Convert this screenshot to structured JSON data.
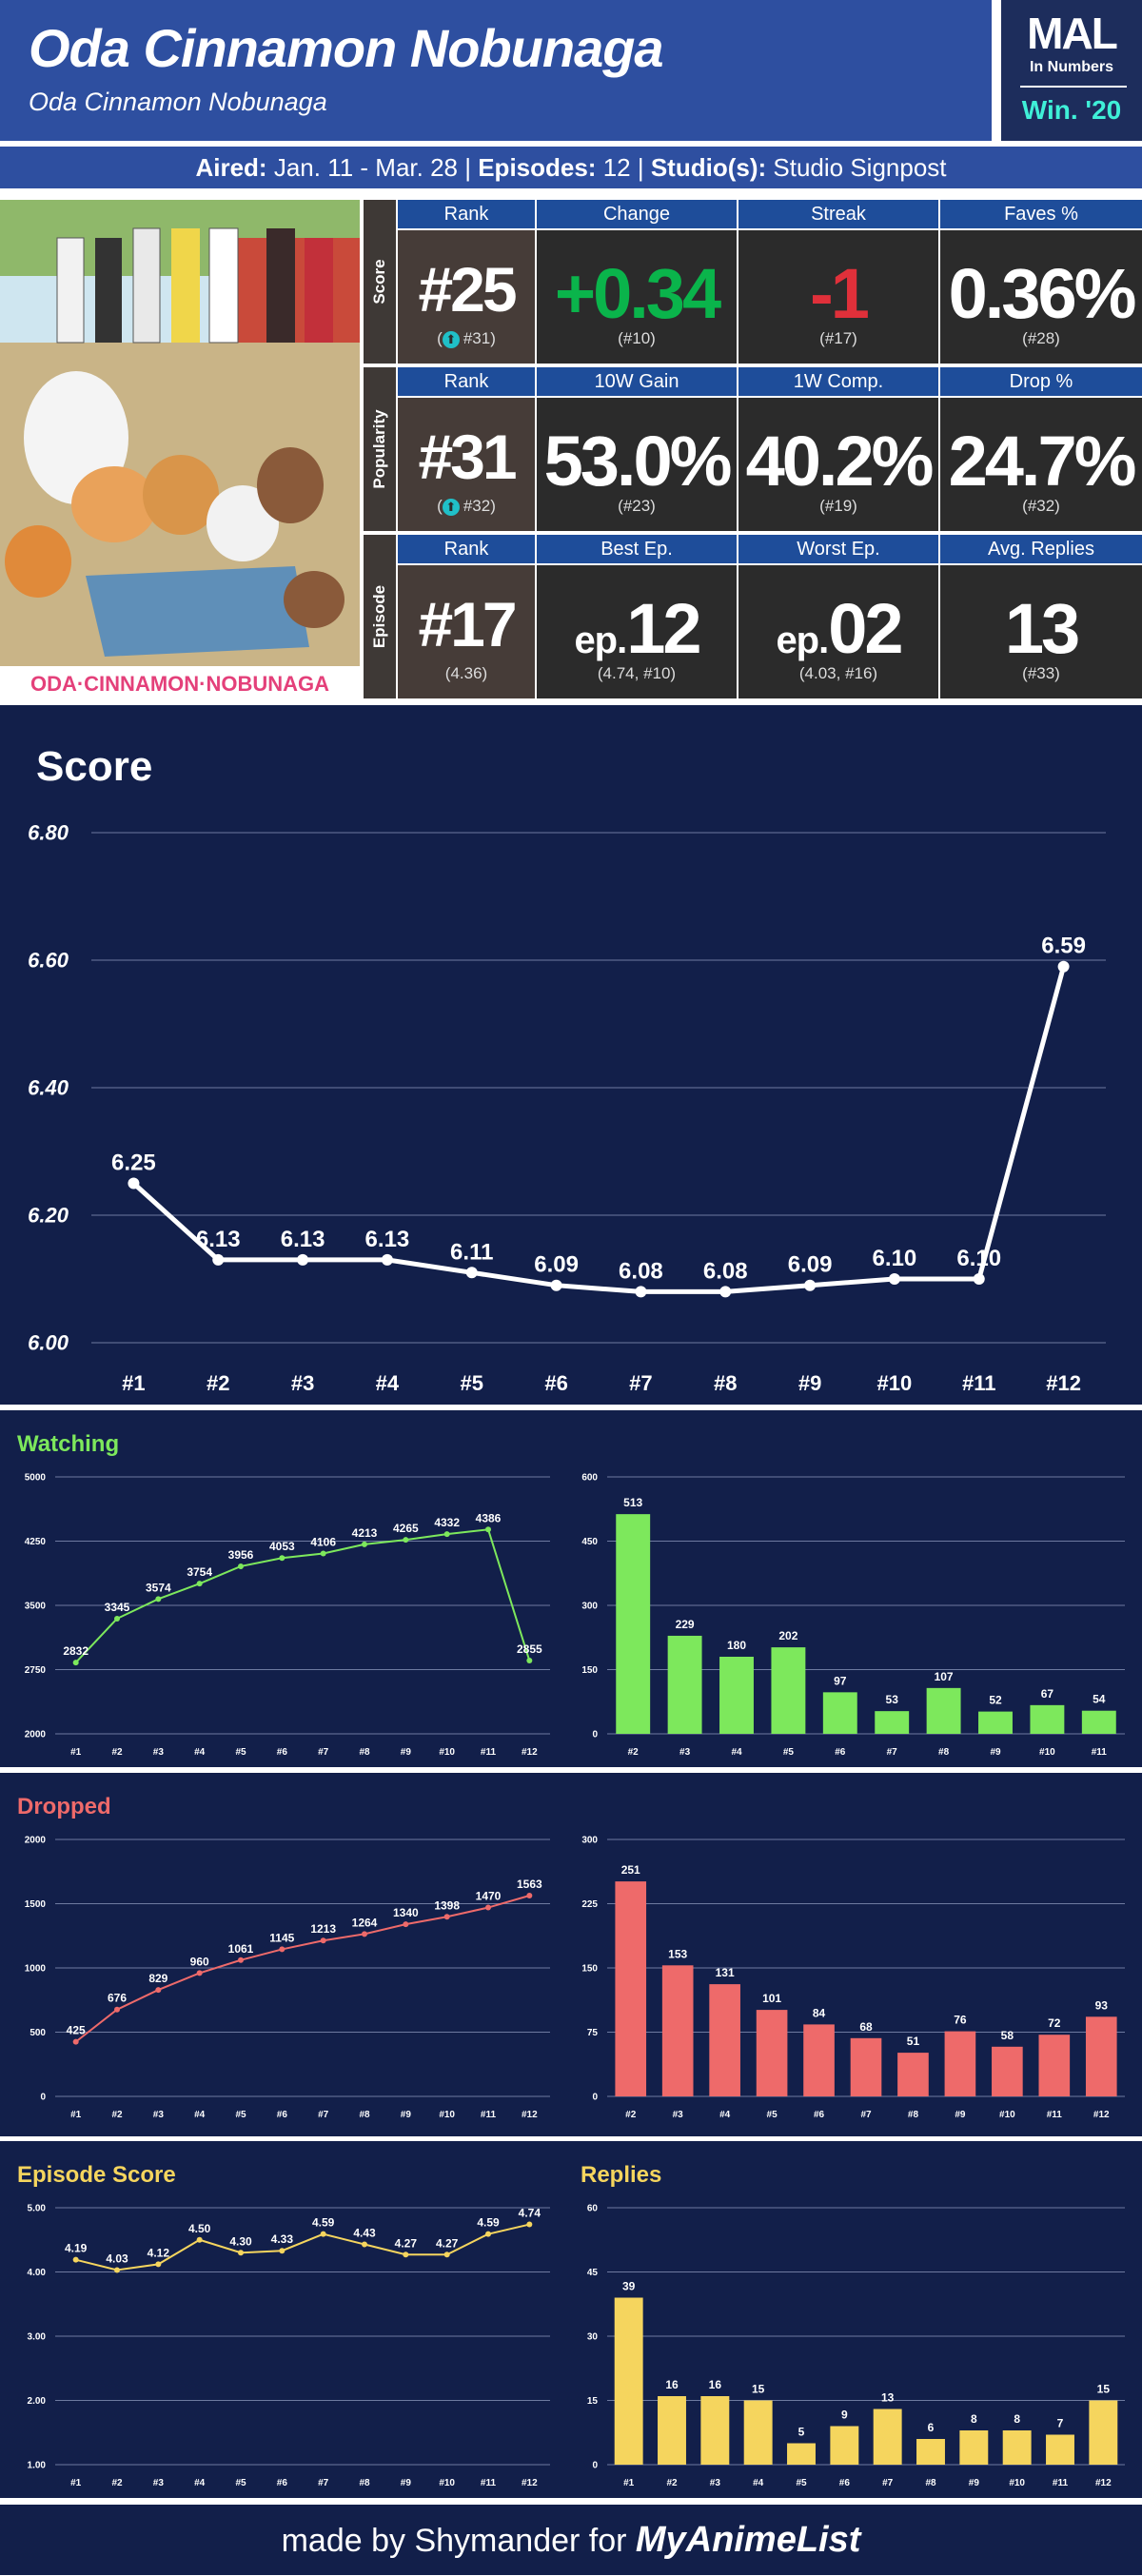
{
  "header": {
    "title": "Oda Cinnamon Nobunaga",
    "subtitle": "Oda Cinnamon Nobunaga",
    "logo_main": "MAL",
    "logo_sub": "In Numbers",
    "season": "Win. '20"
  },
  "info": {
    "aired_label": "Aired:",
    "aired_value": "Jan. 11 - Mar. 28",
    "episodes_label": "Episodes:",
    "episodes_value": "12",
    "studio_label": "Studio(s):",
    "studio_value": "Studio Signpost"
  },
  "poster": {
    "logo_text": "ODA·CINNAMON·NOBUNAGA"
  },
  "stats": {
    "score": {
      "side_label": "Score",
      "headers": [
        "Rank",
        "Change",
        "Streak",
        "Faves %"
      ],
      "values": [
        "#25",
        "+0.34",
        "-1",
        "0.36%"
      ],
      "subs": [
        "#31",
        "(#10)",
        "(#17)",
        "(#28)"
      ]
    },
    "popularity": {
      "side_label": "Popularity",
      "headers": [
        "Rank",
        "10W Gain",
        "1W Comp.",
        "Drop %"
      ],
      "values": [
        "#31",
        "53.0%",
        "40.2%",
        "24.7%"
      ],
      "subs": [
        "#32",
        "(#23)",
        "(#19)",
        "(#32)"
      ]
    },
    "episode": {
      "side_label": "Episode",
      "headers": [
        "Rank",
        "Best Ep.",
        "Worst Ep.",
        "Avg. Replies"
      ],
      "values": [
        "#17",
        "12",
        "02",
        "13"
      ],
      "prefixes": [
        "",
        "ep.",
        "ep.",
        ""
      ],
      "subs": [
        "(4.36)",
        "(4.74, #10)",
        "(4.03, #16)",
        "(#33)"
      ]
    },
    "colors": {
      "positive": "#0ab44b",
      "negative": "#e0303a",
      "rank_arrow": "#20c0c8"
    }
  },
  "chart_data": [
    {
      "id": "score",
      "type": "line",
      "title": "Score",
      "categories": [
        "#1",
        "#2",
        "#3",
        "#4",
        "#5",
        "#6",
        "#7",
        "#8",
        "#9",
        "#10",
        "#11",
        "#12"
      ],
      "values": [
        6.25,
        6.13,
        6.13,
        6.13,
        6.11,
        6.09,
        6.08,
        6.08,
        6.09,
        6.1,
        6.1,
        6.59
      ],
      "labels": [
        "6.25",
        "6.13",
        "6.13",
        "6.13",
        "6.11",
        "6.09",
        "6.08",
        "6.08",
        "6.09",
        "6.10",
        "6.10",
        "6.59"
      ],
      "yticks": [
        "6.00",
        "6.20",
        "6.40",
        "6.60",
        "6.80"
      ],
      "ylim": [
        6.0,
        6.8
      ],
      "color": "#ffffff",
      "grid": true
    },
    {
      "id": "watching-line",
      "type": "line",
      "title": "Watching",
      "categories": [
        "#1",
        "#2",
        "#3",
        "#4",
        "#5",
        "#6",
        "#7",
        "#8",
        "#9",
        "#10",
        "#11",
        "#12"
      ],
      "values": [
        2832,
        3345,
        3574,
        3754,
        3956,
        4053,
        4106,
        4213,
        4265,
        4332,
        4386,
        2855
      ],
      "yticks": [
        "2000",
        "2750",
        "3500",
        "4250",
        "5000"
      ],
      "ylim": [
        2000,
        5000
      ],
      "color": "#7de85c",
      "grid": true
    },
    {
      "id": "watching-bar",
      "type": "bar",
      "categories": [
        "#2",
        "#3",
        "#4",
        "#5",
        "#6",
        "#7",
        "#8",
        "#9",
        "#10",
        "#11"
      ],
      "values": [
        513,
        229,
        180,
        202,
        97,
        53,
        107,
        52,
        67,
        54
      ],
      "yticks": [
        "0",
        "150",
        "300",
        "450",
        "600"
      ],
      "ylim": [
        0,
        600
      ],
      "color": "#7de85c",
      "grid": true
    },
    {
      "id": "dropped-line",
      "type": "line",
      "title": "Dropped",
      "categories": [
        "#1",
        "#2",
        "#3",
        "#4",
        "#5",
        "#6",
        "#7",
        "#8",
        "#9",
        "#10",
        "#11",
        "#12"
      ],
      "values": [
        425,
        676,
        829,
        960,
        1061,
        1145,
        1213,
        1264,
        1340,
        1398,
        1470,
        1563
      ],
      "yticks": [
        "0",
        "500",
        "1000",
        "1500",
        "2000"
      ],
      "ylim": [
        0,
        2000
      ],
      "color": "#ee6a6a",
      "grid": true
    },
    {
      "id": "dropped-bar",
      "type": "bar",
      "categories": [
        "#2",
        "#3",
        "#4",
        "#5",
        "#6",
        "#7",
        "#8",
        "#9",
        "#10",
        "#11",
        "#12"
      ],
      "values": [
        251,
        153,
        131,
        101,
        84,
        68,
        51,
        76,
        58,
        72,
        93
      ],
      "yticks": [
        "0",
        "75",
        "150",
        "225",
        "300"
      ],
      "ylim": [
        0,
        300
      ],
      "color": "#ee6a6a",
      "grid": true
    },
    {
      "id": "episode-score-line",
      "type": "line",
      "title": "Episode Score",
      "categories": [
        "#1",
        "#2",
        "#3",
        "#4",
        "#5",
        "#6",
        "#7",
        "#8",
        "#9",
        "#10",
        "#11",
        "#12"
      ],
      "values": [
        4.19,
        4.03,
        4.12,
        4.5,
        4.3,
        4.33,
        4.59,
        4.43,
        4.27,
        4.27,
        4.59,
        4.74
      ],
      "labels": [
        "4.19",
        "4.03",
        "4.12",
        "4.50",
        "4.30",
        "4.33",
        "4.59",
        "4.43",
        "4.27",
        "4.27",
        "4.59",
        "4.74"
      ],
      "yticks": [
        "1.00",
        "2.00",
        "3.00",
        "4.00",
        "5.00"
      ],
      "ylim": [
        1,
        5
      ],
      "color": "#f5d55e",
      "grid": true
    },
    {
      "id": "replies-bar",
      "type": "bar",
      "title": "Replies",
      "categories": [
        "#1",
        "#2",
        "#3",
        "#4",
        "#5",
        "#6",
        "#7",
        "#8",
        "#9",
        "#10",
        "#11",
        "#12"
      ],
      "values": [
        39,
        16,
        16,
        15,
        5,
        9,
        13,
        6,
        8,
        8,
        7,
        15
      ],
      "yticks": [
        "0",
        "15",
        "30",
        "45",
        "60"
      ],
      "ylim": [
        0,
        60
      ],
      "color": "#f5d55e",
      "grid": true
    }
  ],
  "section_titles": {
    "watching": "Watching",
    "dropped": "Dropped",
    "episode_score": "Episode Score",
    "replies": "Replies"
  },
  "footer": {
    "prefix": "made by Shymander for",
    "brand": "MyAnimeList"
  }
}
